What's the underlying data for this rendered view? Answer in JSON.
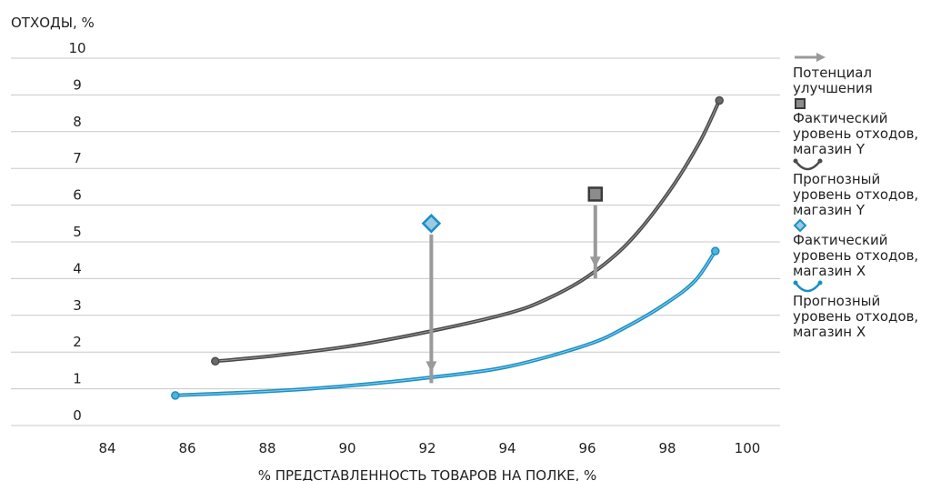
{
  "chart_data": {
    "type": "line",
    "ylabel": "ОТХОДЫ, %",
    "xlabel": "% ПРЕДСТАВЛЕННОСТЬ ТОВАРОВ НА ПОЛКЕ, %",
    "xlim": [
      82,
      102
    ],
    "ylim": [
      0,
      10
    ],
    "x_ticks": [
      "84",
      "86",
      "88",
      "90",
      "92",
      "94",
      "96",
      "98",
      "100"
    ],
    "y_ticks": [
      "10",
      "9",
      "8",
      "7",
      "6",
      "5",
      "4",
      "3",
      "2",
      "1",
      "0"
    ],
    "grid": "horizontal",
    "legend_position": "right",
    "series": [
      {
        "name": "Прогнозный уровень отходов, магазин Y",
        "kind": "curve",
        "color": "#4a4a4a",
        "points": [
          [
            86.7,
            1.75
          ],
          [
            88,
            1.88
          ],
          [
            90,
            2.15
          ],
          [
            92,
            2.55
          ],
          [
            94,
            3.05
          ],
          [
            95,
            3.45
          ],
          [
            96,
            4.05
          ],
          [
            97,
            4.95
          ],
          [
            98,
            6.3
          ],
          [
            98.8,
            7.7
          ],
          [
            99.3,
            8.85
          ]
        ]
      },
      {
        "name": "Прогнозный уровень отходов, магазин X",
        "kind": "curve",
        "color": "#1a8fc4",
        "points": [
          [
            85.7,
            0.82
          ],
          [
            88,
            0.93
          ],
          [
            90,
            1.08
          ],
          [
            92,
            1.3
          ],
          [
            94,
            1.6
          ],
          [
            96,
            2.2
          ],
          [
            97,
            2.7
          ],
          [
            98,
            3.35
          ],
          [
            98.7,
            3.95
          ],
          [
            99.2,
            4.75
          ]
        ]
      },
      {
        "name": "Фактический уровень отходов, магазин Y",
        "kind": "square",
        "color": "#4a4a4a",
        "points": [
          [
            96.2,
            6.3
          ]
        ]
      },
      {
        "name": "Фактический уровень отходов, магазин X",
        "kind": "diamond",
        "color": "#1a8fc4",
        "points": [
          [
            92.1,
            5.5
          ]
        ]
      },
      {
        "name": "Потенциал улучшения",
        "kind": "arrow",
        "color": "#9a9a9a",
        "segments": [
          [
            96.2,
            6.0,
            96.2,
            4.3
          ],
          [
            92.1,
            5.2,
            92.1,
            1.45
          ]
        ]
      }
    ],
    "legend": [
      {
        "symbol": "arrow",
        "label": "Потенциал улучшения"
      },
      {
        "symbol": "square",
        "label": "Фактический уровень отходов, магазин Y"
      },
      {
        "symbol": "curve-gray",
        "label": "Прогнозный уровень отходов, магазин Y"
      },
      {
        "symbol": "diamond",
        "label": "Фактический уровень отходов, магазин X"
      },
      {
        "symbol": "curve-blue",
        "label": "Прогнозный уровень отходов, магазин X"
      }
    ]
  }
}
